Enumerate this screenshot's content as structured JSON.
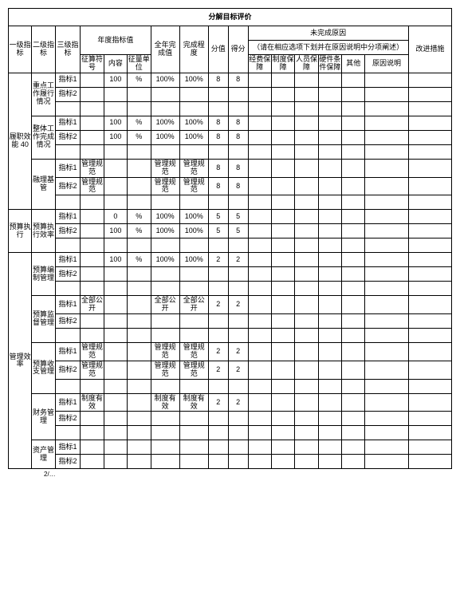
{
  "title": "分解目标评价",
  "headers": {
    "col1": "一级指标",
    "col2": "二级指标",
    "col3": "三级指标",
    "yearTarget": "年度指标值",
    "yearTargetSub": {
      "a": "征算符号",
      "b": "内容",
      "c": "征量单位"
    },
    "annualComplete": "全年完成值",
    "completeDegree": "完成程度",
    "score": "分值",
    "getScore": "得分",
    "incompleteReason": "未完成原因",
    "incompleteReasonSub": "（请在相应选项下划并在原因说明中分项阐述）",
    "reasonCols": {
      "a": "经费保障",
      "b": "制度保障",
      "c": "人员保障",
      "d": "硬件条件保障",
      "e": "其他",
      "f": "原因说明"
    },
    "improve": "改进措施"
  },
  "sections": [
    {
      "l1": "履职效能 40",
      "groups": [
        {
          "l2": "重点工作履行情况",
          "rows": [
            {
              "l3": "指标1",
              "a": "",
              "b": "100",
              "c": "%",
              "d": "100%",
              "e": "100%",
              "f": "8",
              "g": "8"
            },
            {
              "l3": "指标2",
              "a": "",
              "b": "",
              "c": "",
              "d": "",
              "e": "",
              "f": "",
              "g": ""
            },
            {
              "l3": "",
              "a": "",
              "b": "",
              "c": "",
              "d": "",
              "e": "",
              "f": "",
              "g": ""
            }
          ]
        },
        {
          "l2": "整体工作完成情况",
          "rows": [
            {
              "l3": "指标1",
              "a": "",
              "b": "100",
              "c": "%",
              "d": "100%",
              "e": "100%",
              "f": "8",
              "g": "8"
            },
            {
              "l3": "指标2",
              "a": "",
              "b": "100",
              "c": "%",
              "d": "100%",
              "e": "100%",
              "f": "8",
              "g": "8"
            },
            {
              "l3": "",
              "a": "",
              "b": "",
              "c": "",
              "d": "",
              "e": "",
              "f": "",
              "g": ""
            }
          ]
        },
        {
          "l2": "融理基管",
          "rows": [
            {
              "l3": "指标1",
              "a": "管理规范",
              "b": "",
              "c": "",
              "d": "管理规范",
              "e": "管理规范",
              "f": "8",
              "g": "8"
            },
            {
              "l3": "指标2",
              "a": "管理规范",
              "b": "",
              "c": "",
              "d": "管理规范",
              "e": "管理规范",
              "f": "8",
              "g": "8"
            },
            {
              "l3": "",
              "a": "",
              "b": "",
              "c": "",
              "d": "",
              "e": "",
              "f": "",
              "g": ""
            }
          ]
        }
      ]
    },
    {
      "l1": "预算执行",
      "groups": [
        {
          "l2": "预算执行效率",
          "rows": [
            {
              "l3": "指标1",
              "a": "",
              "b": "0",
              "c": "%",
              "d": "100%",
              "e": "100%",
              "f": "5",
              "g": "5"
            },
            {
              "l3": "指标2",
              "a": "",
              "b": "100",
              "c": "%",
              "d": "100%",
              "e": "100%",
              "f": "5",
              "g": "5"
            },
            {
              "l3": "",
              "a": "",
              "b": "",
              "c": "",
              "d": "",
              "e": "",
              "f": "",
              "g": ""
            }
          ]
        }
      ]
    },
    {
      "l1": "管理效率",
      "groups": [
        {
          "l2": "预算编制管理",
          "rows": [
            {
              "l3": "指标1",
              "a": "",
              "b": "100",
              "c": "%",
              "d": "100%",
              "e": "100%",
              "f": "2",
              "g": "2"
            },
            {
              "l3": "指标2",
              "a": "",
              "b": "",
              "c": "",
              "d": "",
              "e": "",
              "f": "",
              "g": ""
            },
            {
              "l3": "",
              "a": "",
              "b": "",
              "c": "",
              "d": "",
              "e": "",
              "f": "",
              "g": ""
            }
          ]
        },
        {
          "l2": "预算监督管理",
          "rows": [
            {
              "l3": "指标1",
              "a": "全部公开",
              "b": "",
              "c": "",
              "d": "全部公开",
              "e": "全部公开",
              "f": "2",
              "g": "2"
            },
            {
              "l3": "指标2",
              "a": "",
              "b": "",
              "c": "",
              "d": "",
              "e": "",
              "f": "",
              "g": ""
            },
            {
              "l3": "",
              "a": "",
              "b": "",
              "c": "",
              "d": "",
              "e": "",
              "f": "",
              "g": ""
            }
          ]
        },
        {
          "l2": "预算收支管理",
          "rows": [
            {
              "l3": "指标1",
              "a": "管理规范",
              "b": "",
              "c": "",
              "d": "管理规范",
              "e": "管理规范",
              "f": "2",
              "g": "2"
            },
            {
              "l3": "指标2",
              "a": "管理规范",
              "b": "",
              "c": "",
              "d": "管理规范",
              "e": "管理规范",
              "f": "2",
              "g": "2"
            },
            {
              "l3": "",
              "a": "",
              "b": "",
              "c": "",
              "d": "",
              "e": "",
              "f": "",
              "g": ""
            }
          ]
        },
        {
          "l2": "财务管理",
          "rows": [
            {
              "l3": "指标1",
              "a": "制度有效",
              "b": "",
              "c": "",
              "d": "制度有效",
              "e": "制度有效",
              "f": "2",
              "g": "2"
            },
            {
              "l3": "指标2",
              "a": "",
              "b": "",
              "c": "",
              "d": "",
              "e": "",
              "f": "",
              "g": ""
            },
            {
              "l3": "",
              "a": "",
              "b": "",
              "c": "",
              "d": "",
              "e": "",
              "f": "",
              "g": ""
            }
          ]
        },
        {
          "l2": "资产管理",
          "rows": [
            {
              "l3": "指标1",
              "a": "",
              "b": "",
              "c": "",
              "d": "",
              "e": "",
              "f": "",
              "g": ""
            },
            {
              "l3": "指标2",
              "a": "",
              "b": "",
              "c": "",
              "d": "",
              "e": "",
              "f": "",
              "g": ""
            }
          ]
        }
      ]
    }
  ],
  "footer": "2/…"
}
